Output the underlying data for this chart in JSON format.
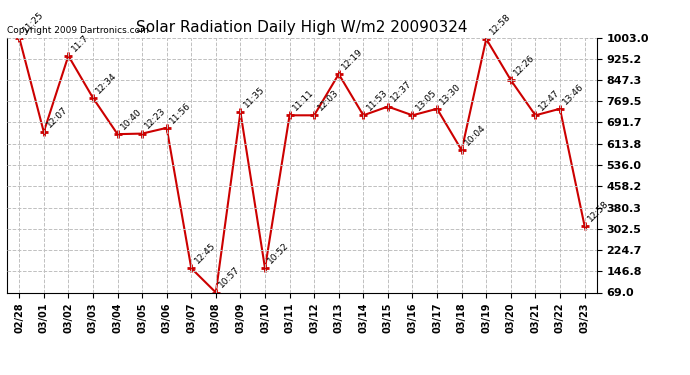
{
  "title": "Solar Radiation Daily High W/m2 20090324",
  "copyright": "Copyright 2009 Dartronics.com",
  "dates": [
    "02/28",
    "03/01",
    "03/02",
    "03/03",
    "03/04",
    "03/05",
    "03/06",
    "03/07",
    "03/08",
    "03/09",
    "03/10",
    "03/11",
    "03/12",
    "03/13",
    "03/14",
    "03/15",
    "03/16",
    "03/17",
    "03/18",
    "03/19",
    "03/20",
    "03/21",
    "03/22",
    "03/23"
  ],
  "values": [
    1003.0,
    657.0,
    936.0,
    782.0,
    649.0,
    651.0,
    672.0,
    158.0,
    69.0,
    730.0,
    158.0,
    718.0,
    718.0,
    869.0,
    718.0,
    750.0,
    718.0,
    742.0,
    590.0,
    998.0,
    847.0,
    718.0,
    742.0,
    313.0
  ],
  "times": [
    "11:25",
    "12:07",
    "11:7",
    "12:34",
    "10:40",
    "12:23",
    "11:56",
    "12:45",
    "10:57",
    "11:35",
    "10:52",
    "11:11",
    "12:03",
    "12:19",
    "11:53",
    "12:37",
    "13:05",
    "13:30",
    "10:04",
    "12:58",
    "12:26",
    "12:47",
    "13:46",
    "12:58"
  ],
  "ylim": [
    69.0,
    1003.0
  ],
  "yticks": [
    69.0,
    146.8,
    224.7,
    302.5,
    380.3,
    458.2,
    536.0,
    613.8,
    691.7,
    769.5,
    847.3,
    925.2,
    1003.0
  ],
  "line_color": "#cc0000",
  "marker_color": "#cc0000",
  "bg_color": "#ffffff",
  "grid_color": "#c0c0c0",
  "title_fontsize": 11,
  "label_fontsize": 6.5,
  "tick_fontsize": 7,
  "ytick_fontsize": 8,
  "copyright_fontsize": 6.5
}
